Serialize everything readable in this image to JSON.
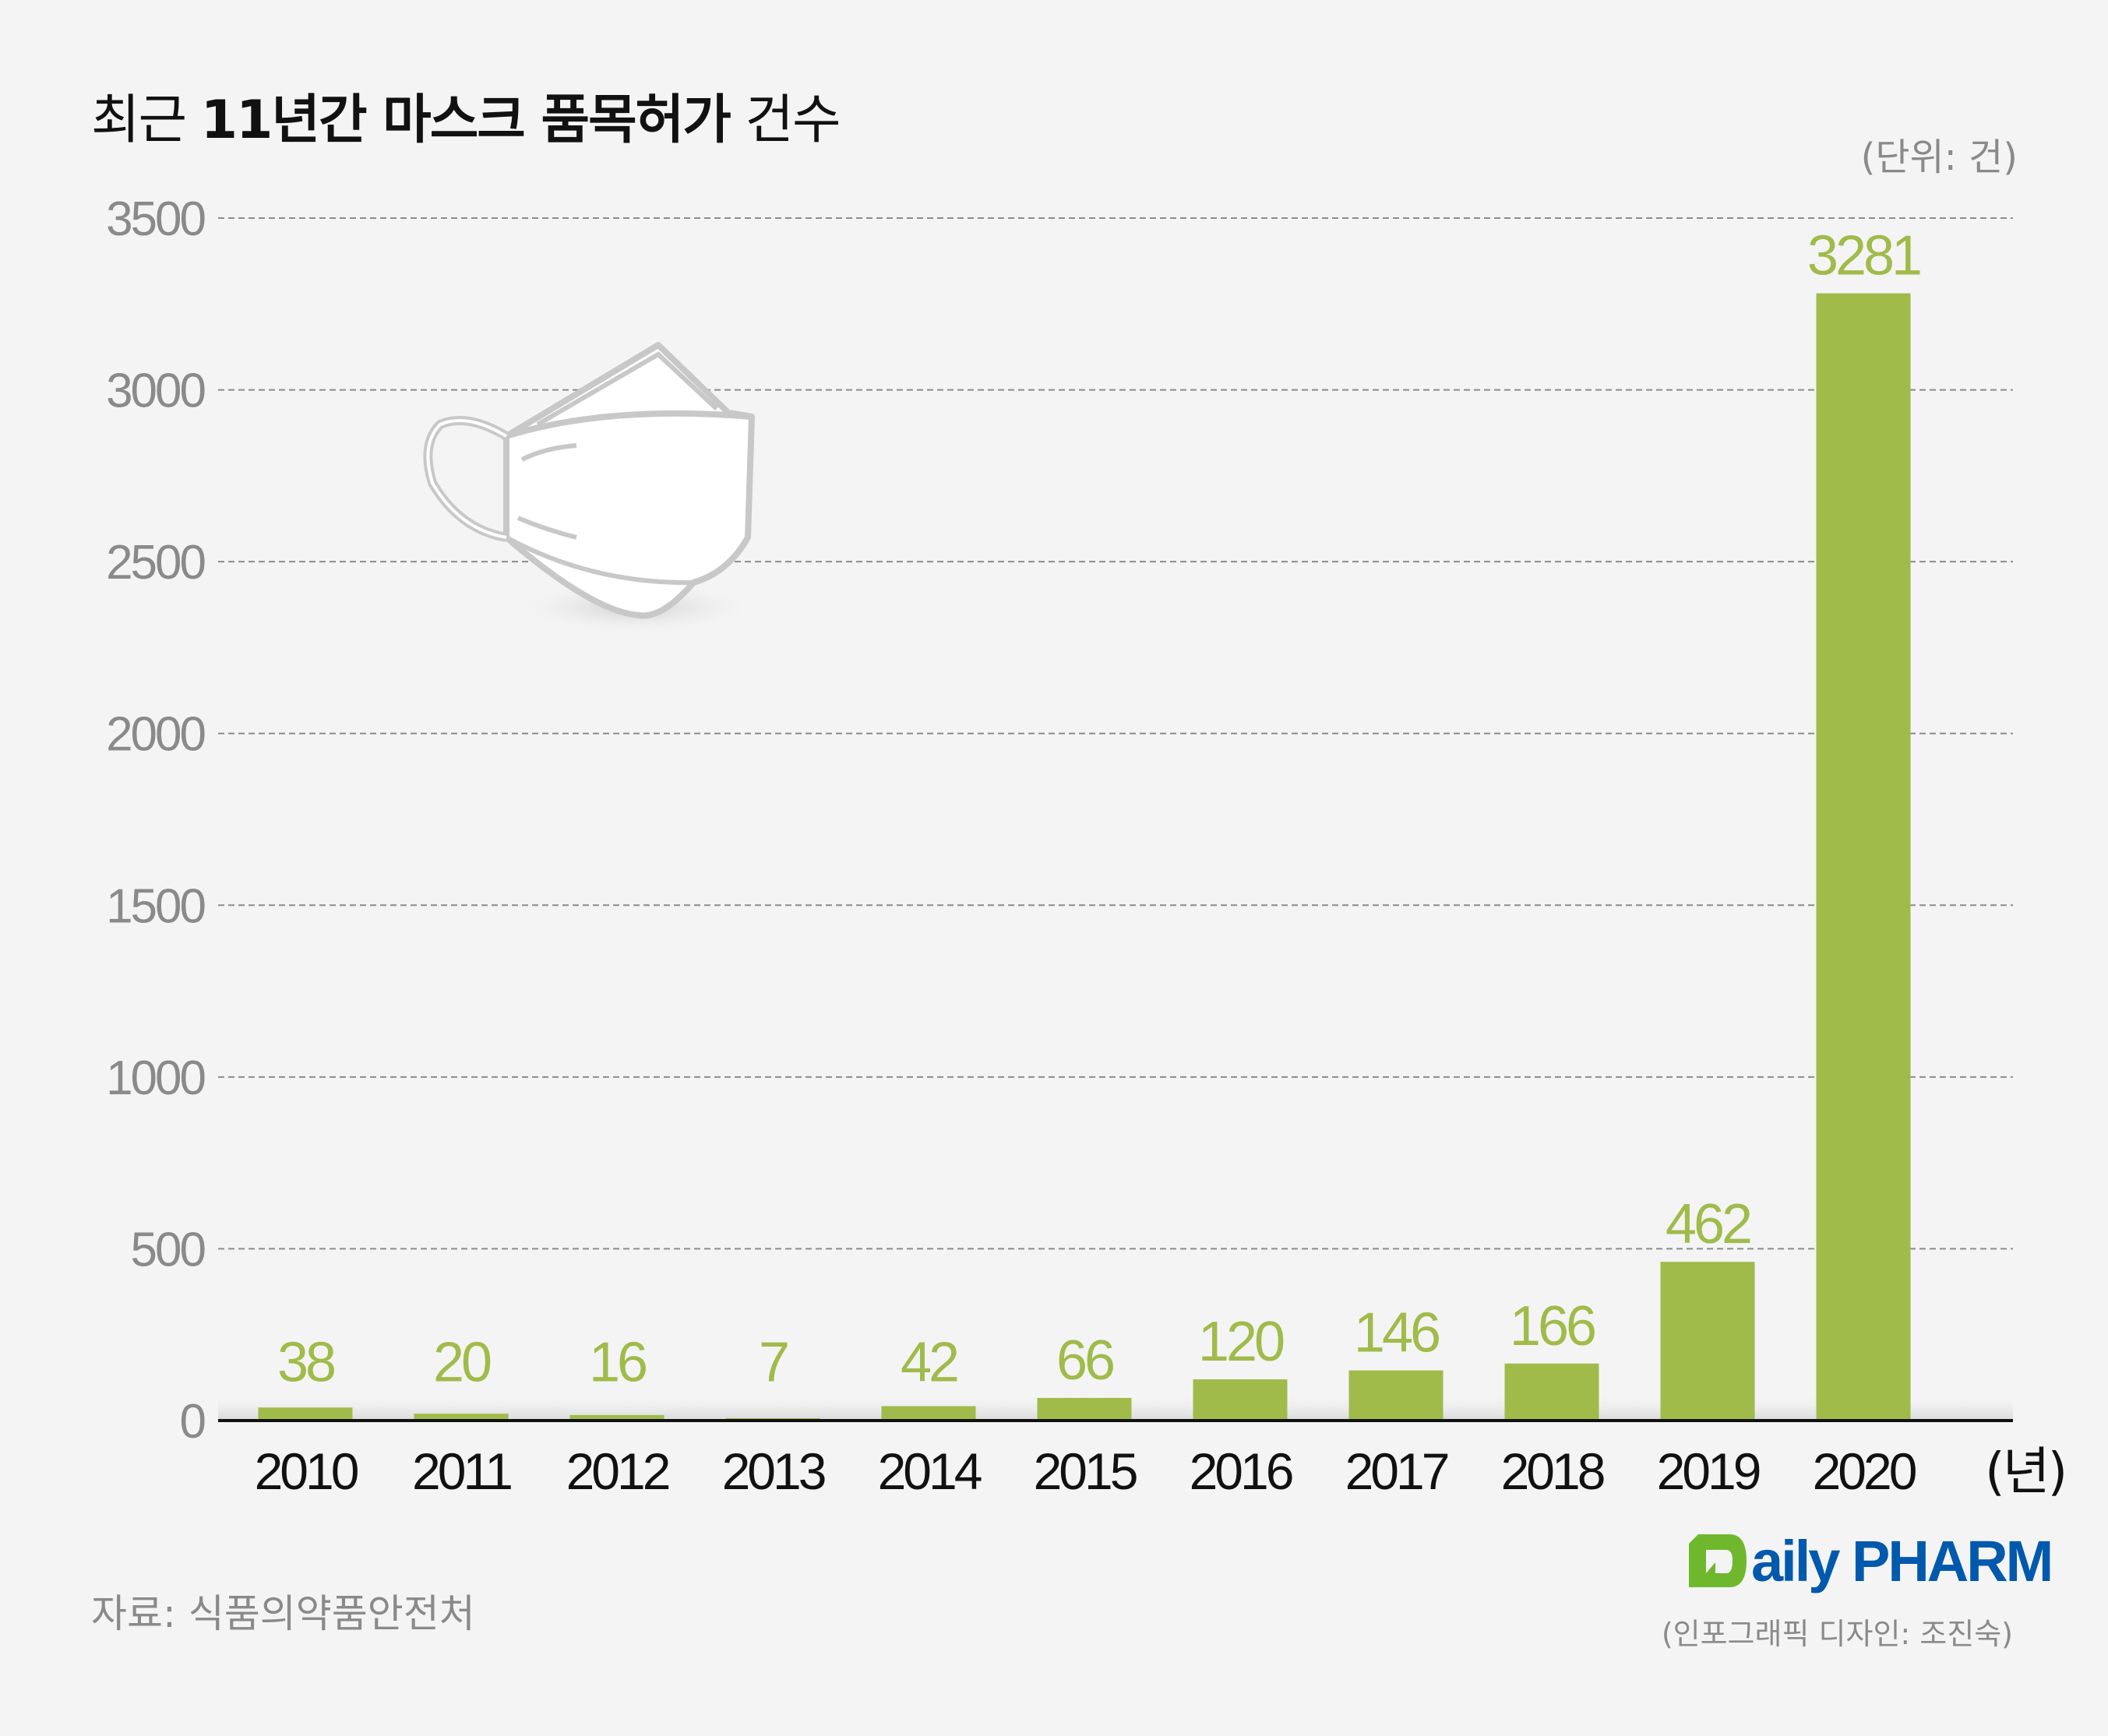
{
  "title": {
    "prefix": "최근 ",
    "bold": "11년간 마스크 품목허가",
    "suffix": " 건수"
  },
  "unit_label": "(단위: 건)",
  "source": "자료: 식품의약품안전처",
  "credit": "(인포그래픽 디자인: 조진숙)",
  "logo": {
    "text": "aily PHARM",
    "letter": "D",
    "colors": {
      "green": "#6fb82e",
      "blue": "#0059ac"
    }
  },
  "chart_data": {
    "type": "bar",
    "title": "최근 11년간 마스크 품목허가 건수",
    "categories": [
      "2010",
      "2011",
      "2012",
      "2013",
      "2014",
      "2015",
      "2016",
      "2017",
      "2018",
      "2019",
      "2020"
    ],
    "values": [
      38,
      20,
      16,
      7,
      42,
      66,
      120,
      146,
      166,
      462,
      3281
    ],
    "x_unit_label": "(년)",
    "y_ticks": [
      0,
      500,
      1000,
      1500,
      2000,
      2500,
      3000,
      3500
    ],
    "ylim": [
      0,
      3500
    ],
    "grid": true,
    "bar_color": "#a0bb4a",
    "label_color": "#a0bb4a",
    "illustration": "face-mask-icon"
  }
}
